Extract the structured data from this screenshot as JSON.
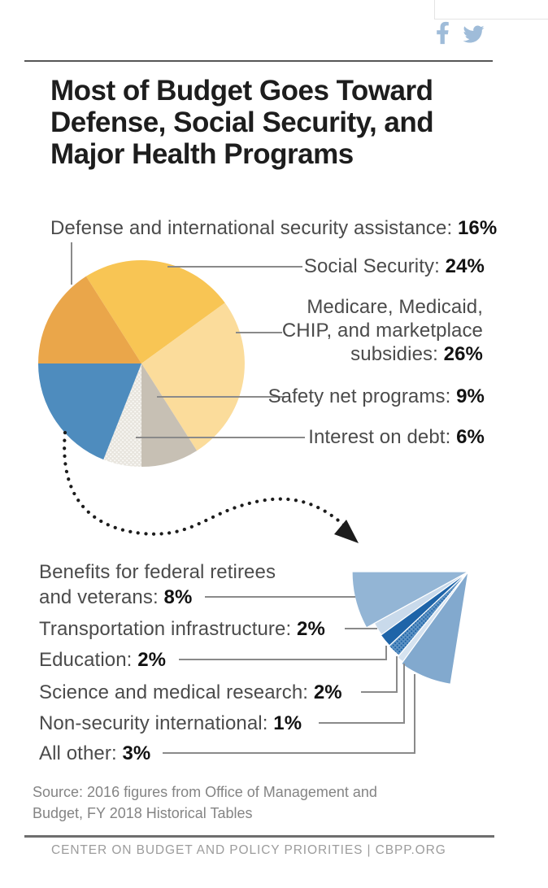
{
  "share_icons": [
    "facebook",
    "twitter"
  ],
  "title_lines": [
    "Most of Budget Goes Toward",
    "Defense, Social Security, and",
    "Major Health Programs"
  ],
  "callouts_main": [
    {
      "text": "Defense and international security assistance: ",
      "pct": "16%"
    },
    {
      "text": "Social Security: ",
      "pct": "24%"
    },
    {
      "lines": [
        "Medicare, Medicaid,",
        "CHIP, and marketplace"
      ],
      "text": "subsidies: ",
      "pct": "26%"
    },
    {
      "text": "Safety net programs: ",
      "pct": "9%"
    },
    {
      "text": "Interest on debt: ",
      "pct": "6%"
    }
  ],
  "callouts_breakout": [
    {
      "lines": [
        "Benefits for federal retirees"
      ],
      "text": "and veterans: ",
      "pct": "8%"
    },
    {
      "text": "Transportation infrastructure: ",
      "pct": "2%"
    },
    {
      "text": "Education: ",
      "pct": "2%"
    },
    {
      "text": "Science and medical research: ",
      "pct": "2%"
    },
    {
      "text": "Non-security international: ",
      "pct": "1%"
    },
    {
      "text": "All other: ",
      "pct": "3%"
    }
  ],
  "source_lines": [
    "Source: 2016 figures from Office of Management and",
    "Budget, FY 2018 Historical Tables"
  ],
  "footer_text": "CENTER ON BUDGET AND POLICY PRIORITIES | CBPP.ORG",
  "colors": {
    "share_icon": "#9FBCD9",
    "leader_line": "#8a8a8a",
    "arrow": "#1c1c1c",
    "title_text": "#1d1d1d",
    "label_text": "#4b4b4b"
  },
  "chart_data": {
    "type": "pie",
    "title": "Most of Budget Goes Toward Defense, Social Security, and Major Health Programs",
    "source": "Source: 2016 figures from Office of Management and Budget, FY 2018 Historical Tables",
    "main_pie": {
      "slices": [
        {
          "label": "Social Security",
          "value": 24,
          "color": "#F8C554"
        },
        {
          "label": "Medicare, Medicaid, CHIP, and marketplace subsidies",
          "value": 26,
          "color": "#FBDC9B"
        },
        {
          "label": "Safety net programs",
          "value": 9,
          "color": "#C7C0B4"
        },
        {
          "label": "Interest on debt",
          "value": 6,
          "color": "#E8E5DE",
          "pattern": "halftone-light"
        },
        {
          "label": "",
          "value": 19,
          "color": "#4E8CBE",
          "note": "unlabeled blue slice, expanded by dotted arrow into breakout fan below"
        },
        {
          "label": "Defense and international security assistance",
          "value": 16,
          "color": "#EAA64A"
        }
      ]
    },
    "breakout_pie": {
      "slices": [
        {
          "label": "Benefits for federal retirees and veterans",
          "value": 8,
          "color": "#93B5D5"
        },
        {
          "label": "Transportation infrastructure",
          "value": 2,
          "color": "#C9DAEB"
        },
        {
          "label": "Education",
          "value": 2,
          "color": "#1E64A8"
        },
        {
          "label": "Science and medical research",
          "value": 2,
          "color": "#5E93C4",
          "pattern": "halftone-blue"
        },
        {
          "label": "Non-security international",
          "value": 1,
          "color": "#D6E3F0"
        },
        {
          "label": "All other",
          "value": 3,
          "color": "#82A9CE"
        }
      ]
    }
  }
}
